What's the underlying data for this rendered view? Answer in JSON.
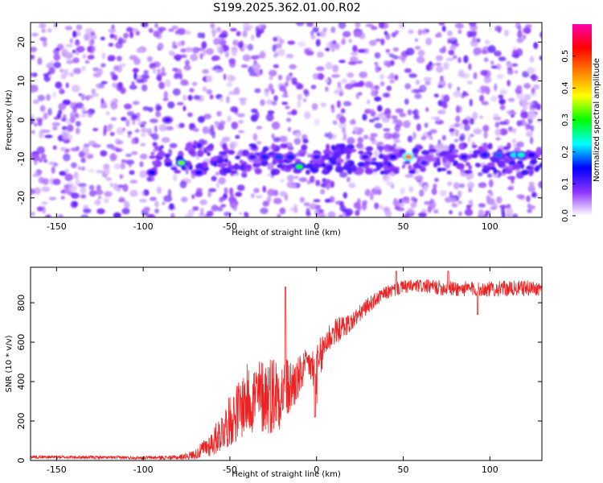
{
  "title": "S199.2025.362.01.00.R02",
  "chart_data": [
    {
      "type": "heatmap",
      "xlabel": "Height of straight line (km)",
      "ylabel": "Frequency (Hz)",
      "xlim": [
        -165,
        130
      ],
      "ylim": [
        -25,
        25
      ],
      "xticks": [
        -150,
        -100,
        -50,
        0,
        50,
        100
      ],
      "yticks": [
        -20,
        -10,
        0,
        10,
        20
      ],
      "colorbar": {
        "label": "Normalized spectral amplitude",
        "range": [
          0.0,
          0.6
        ],
        "ticks": [
          0.0,
          0.1,
          0.2,
          0.3,
          0.4,
          0.5
        ],
        "colormap": [
          "#ffffff",
          "#8c33ff",
          "#0000ff",
          "#00ffff",
          "#00ff00",
          "#ffff00",
          "#ff8000",
          "#ff0000",
          "#ff00aa"
        ]
      },
      "background_level": 0.05,
      "band": {
        "center_hz": -10,
        "start_km": -95,
        "end_km": 130
      },
      "hotspots": [
        {
          "x": -95,
          "y": -13.5,
          "value": 0.15
        },
        {
          "x": -78,
          "y": -11,
          "value": 0.33
        },
        {
          "x": -86,
          "y": 0,
          "value": 0.12
        },
        {
          "x": -68,
          "y": -13.5,
          "value": 0.14
        },
        {
          "x": -37,
          "y": -9.5,
          "value": 0.12
        },
        {
          "x": -30,
          "y": -9.5,
          "value": 0.16
        },
        {
          "x": -22,
          "y": -9.5,
          "value": 0.17
        },
        {
          "x": -15,
          "y": -9.5,
          "value": 0.16
        },
        {
          "x": -10,
          "y": -12,
          "value": 0.31
        },
        {
          "x": 0,
          "y": -9.5,
          "value": 0.12
        },
        {
          "x": 28,
          "y": -9.5,
          "value": 0.12
        },
        {
          "x": 44,
          "y": -9.5,
          "value": 0.14
        },
        {
          "x": 53,
          "y": -9.5,
          "value": 0.45
        },
        {
          "x": 62,
          "y": -11,
          "value": 0.11
        },
        {
          "x": 85,
          "y": -9.5,
          "value": 0.13
        },
        {
          "x": 97,
          "y": -9,
          "value": 0.16
        },
        {
          "x": 105,
          "y": -9,
          "value": 0.18
        },
        {
          "x": 114,
          "y": -9,
          "value": 0.22
        },
        {
          "x": 118,
          "y": -9,
          "value": 0.24
        },
        {
          "x": 124,
          "y": -9,
          "value": 0.15
        }
      ]
    },
    {
      "type": "line",
      "xlabel": "Height of straight line (km)",
      "ylabel": "SNR (10 * v/v)",
      "xlim": [
        -165,
        130
      ],
      "ylim": [
        0,
        980
      ],
      "xticks": [
        -150,
        -100,
        -50,
        0,
        50,
        100
      ],
      "yticks": [
        0,
        200,
        400,
        600,
        800
      ],
      "color": "#ee2222",
      "envelope": {
        "x": [
          -165,
          -120,
          -100,
          -80,
          -70,
          -60,
          -50,
          -40,
          -35,
          -30,
          -25,
          -20,
          -15,
          -10,
          -5,
          0,
          5,
          10,
          20,
          30,
          40,
          50,
          60,
          80,
          100,
          130
        ],
        "mean": [
          18,
          15,
          14,
          15,
          30,
          90,
          200,
          310,
          320,
          330,
          340,
          345,
          370,
          420,
          500,
          430,
          600,
          650,
          700,
          790,
          850,
          880,
          885,
          870,
          870,
          875
        ],
        "noise": [
          8,
          8,
          8,
          12,
          25,
          70,
          130,
          180,
          190,
          200,
          210,
          180,
          150,
          110,
          70,
          150,
          90,
          70,
          50,
          40,
          35,
          35,
          35,
          40,
          40,
          40
        ]
      },
      "features": [
        {
          "x": -18,
          "y": 880
        },
        {
          "x": -1,
          "y": 220
        },
        {
          "x": 46,
          "y": 960
        },
        {
          "x": 76,
          "y": 960
        },
        {
          "x": 93,
          "y": 740
        }
      ]
    }
  ]
}
